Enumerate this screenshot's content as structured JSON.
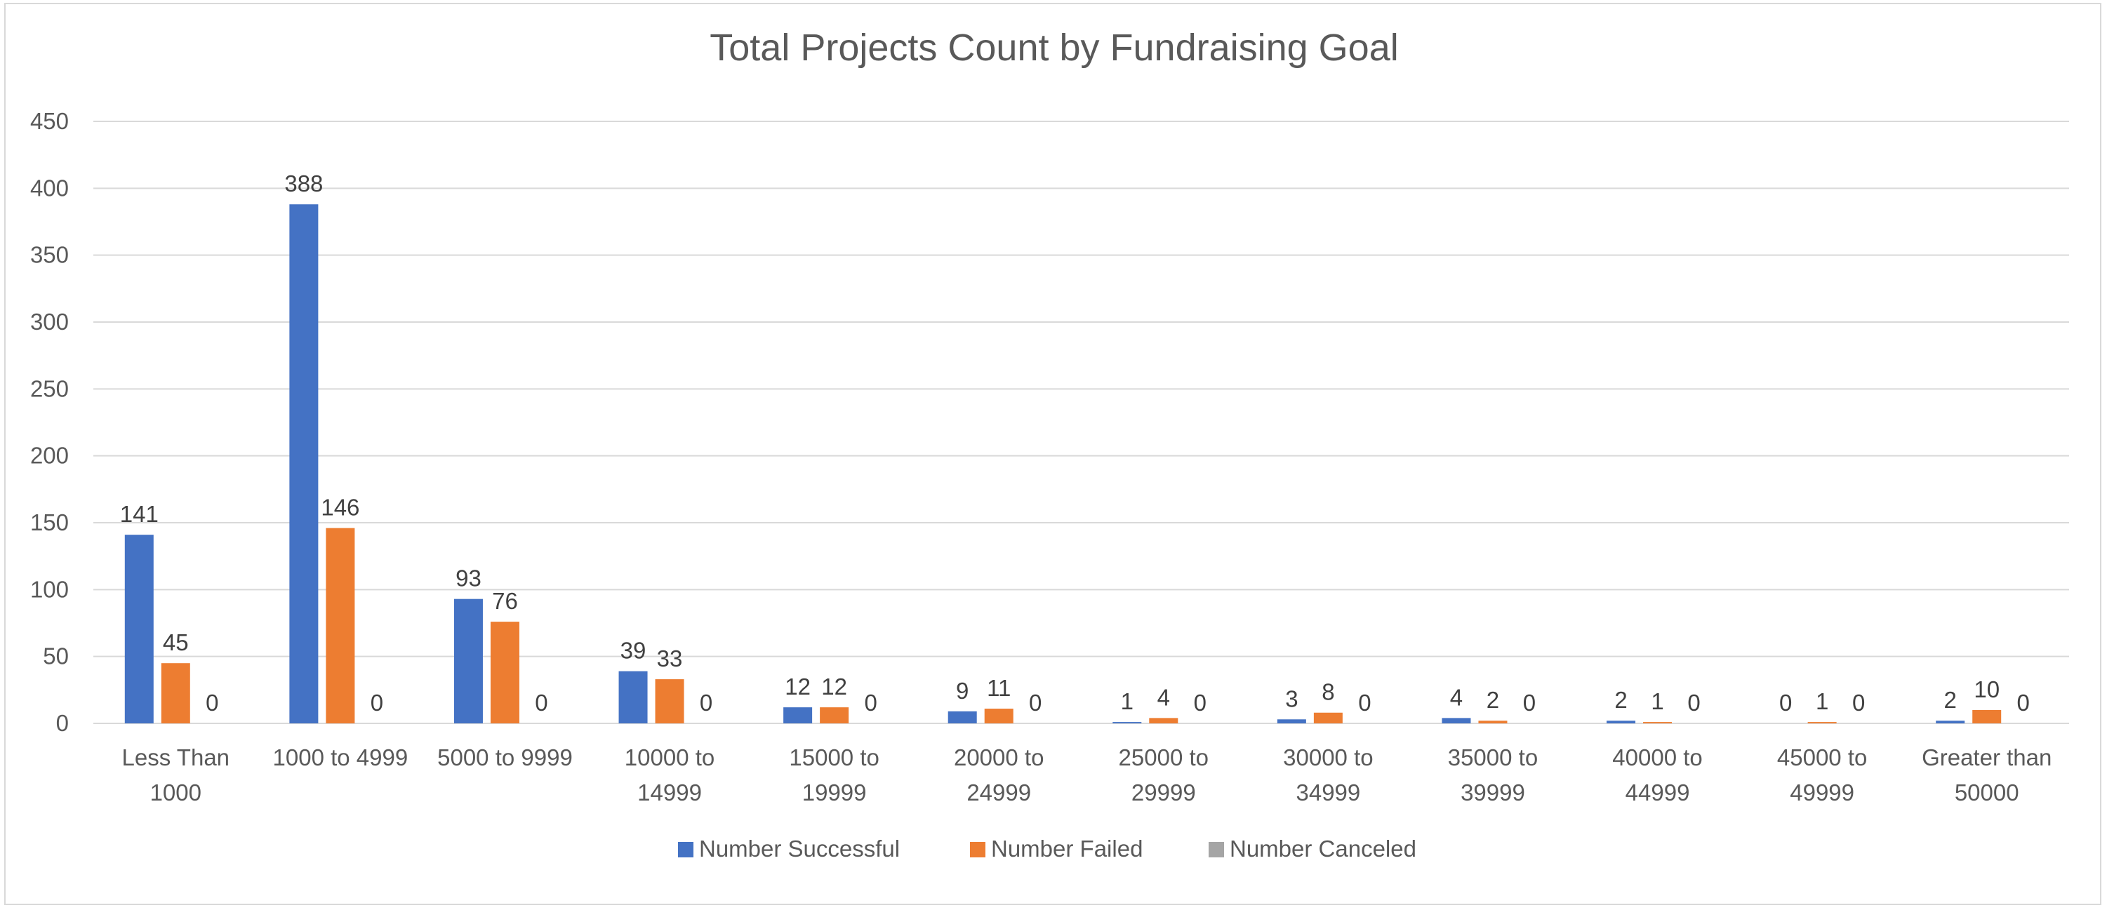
{
  "chart_data": {
    "type": "bar",
    "title": "Total Projects Count by Fundraising Goal",
    "xlabel": "",
    "ylabel": "",
    "ylim": [
      0,
      450
    ],
    "yticks": [
      0,
      50,
      100,
      150,
      200,
      250,
      300,
      350,
      400,
      450
    ],
    "grid": true,
    "legend_position": "bottom",
    "categories": [
      [
        "Less Than",
        "1000"
      ],
      [
        "1000 to 4999"
      ],
      [
        "5000 to 9999"
      ],
      [
        "10000 to",
        "14999"
      ],
      [
        "15000 to",
        "19999"
      ],
      [
        "20000 to",
        "24999"
      ],
      [
        "25000 to",
        "29999"
      ],
      [
        "30000 to",
        "34999"
      ],
      [
        "35000 to",
        "39999"
      ],
      [
        "40000 to",
        "44999"
      ],
      [
        "45000 to",
        "49999"
      ],
      [
        "Greater than",
        "50000"
      ]
    ],
    "series": [
      {
        "name": "Number Successful",
        "color": "#4472c4",
        "values": [
          141,
          388,
          93,
          39,
          12,
          9,
          1,
          3,
          4,
          2,
          0,
          2
        ]
      },
      {
        "name": "Number Failed",
        "color": "#ed7d31",
        "values": [
          45,
          146,
          76,
          33,
          12,
          11,
          4,
          8,
          2,
          1,
          1,
          10
        ]
      },
      {
        "name": "Number Canceled",
        "color": "#a5a5a5",
        "values": [
          0,
          0,
          0,
          0,
          0,
          0,
          0,
          0,
          0,
          0,
          0,
          0
        ]
      }
    ]
  }
}
